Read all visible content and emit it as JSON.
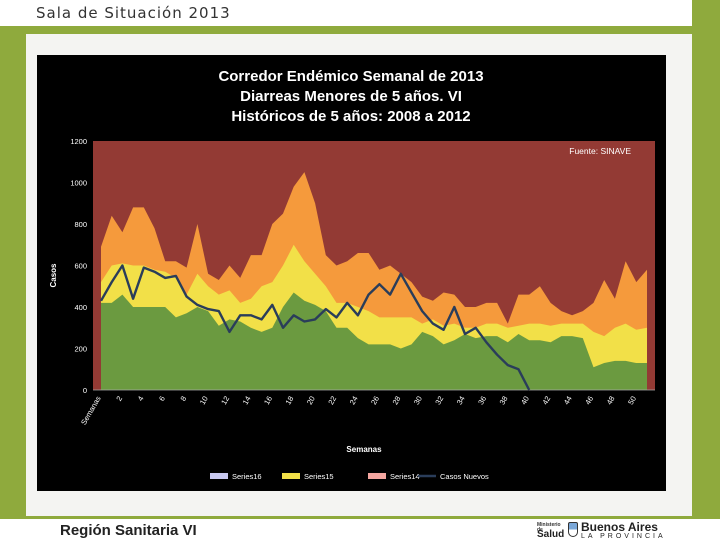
{
  "header": {
    "title": "Sala de Situación 2013"
  },
  "footer": {
    "region": "Región Sanitaria VI",
    "logo_ministry_line": "Ministerio de",
    "logo_salud": "Salud",
    "logo_brand": "Buenos Aires",
    "logo_province": "LA PROVINCIA"
  },
  "colors": {
    "frame": "#8faa3d",
    "plot_background": "#933a34",
    "series14": "#f59a3c",
    "series15": "#f2e048",
    "series16": "#6b9a40",
    "casos_nuevos": "#2a3d5a"
  },
  "chart_data": {
    "type": "area",
    "title_lines": [
      "Corredor Endémico Semanal de 2013",
      "Diarreas  Menores de 5 años.  VI",
      "Históricos de 5 años: 2008 a 2012"
    ],
    "source": "Fuente: SINAVE",
    "xlabel": "Semanas",
    "ylabel": "Casos",
    "ylim": [
      0,
      1200
    ],
    "yticks": [
      0,
      200,
      400,
      600,
      800,
      1000,
      1200
    ],
    "xtick_labels": [
      "Semanas",
      "2",
      "4",
      "6",
      "8",
      "10",
      "12",
      "14",
      "16",
      "18",
      "20",
      "22",
      "24",
      "26",
      "28",
      "30",
      "32",
      "34",
      "36",
      "38",
      "40",
      "42",
      "44",
      "46",
      "48",
      "50"
    ],
    "weeks": [
      1,
      2,
      3,
      4,
      5,
      6,
      7,
      8,
      9,
      10,
      11,
      12,
      13,
      14,
      15,
      16,
      17,
      18,
      19,
      20,
      21,
      22,
      23,
      24,
      25,
      26,
      27,
      28,
      29,
      30,
      31,
      32,
      33,
      34,
      35,
      36,
      37,
      38,
      39,
      40,
      41,
      42,
      43,
      44,
      45,
      46,
      47,
      48,
      49,
      50,
      51,
      52
    ],
    "legend": [
      "Series16",
      "Series15",
      "Series14",
      "Casos Nuevos"
    ],
    "series": [
      {
        "name": "Series14",
        "kind": "area",
        "values": [
          690,
          840,
          760,
          880,
          880,
          780,
          620,
          620,
          590,
          800,
          560,
          530,
          600,
          540,
          650,
          650,
          800,
          850,
          980,
          1050,
          900,
          650,
          600,
          620,
          660,
          660,
          580,
          600,
          560,
          520,
          450,
          430,
          470,
          460,
          400,
          400,
          420,
          420,
          320,
          460,
          460,
          500,
          420,
          380,
          360,
          380,
          420,
          530,
          440,
          620,
          520,
          580
        ]
      },
      {
        "name": "Series15",
        "kind": "area",
        "values": [
          520,
          600,
          610,
          600,
          600,
          580,
          570,
          540,
          460,
          560,
          500,
          460,
          480,
          420,
          440,
          500,
          520,
          600,
          700,
          620,
          560,
          500,
          420,
          420,
          400,
          380,
          350,
          350,
          350,
          350,
          320,
          340,
          310,
          320,
          300,
          300,
          320,
          320,
          300,
          310,
          320,
          320,
          310,
          320,
          320,
          320,
          280,
          260,
          300,
          320,
          290,
          300
        ]
      },
      {
        "name": "Series16",
        "kind": "area",
        "values": [
          420,
          420,
          460,
          400,
          400,
          400,
          400,
          350,
          370,
          400,
          380,
          310,
          340,
          330,
          300,
          280,
          300,
          400,
          470,
          430,
          410,
          380,
          300,
          300,
          250,
          220,
          220,
          220,
          200,
          220,
          280,
          260,
          220,
          240,
          270,
          250,
          260,
          260,
          230,
          270,
          240,
          240,
          230,
          260,
          260,
          250,
          110,
          130,
          140,
          140,
          130,
          130
        ]
      },
      {
        "name": "Casos Nuevos",
        "kind": "line",
        "values": [
          430,
          520,
          600,
          440,
          590,
          570,
          540,
          550,
          450,
          410,
          390,
          380,
          280,
          360,
          360,
          340,
          410,
          300,
          360,
          330,
          340,
          390,
          350,
          420,
          360,
          460,
          510,
          460,
          560,
          470,
          380,
          320,
          290,
          400,
          270,
          300,
          230,
          170,
          120,
          100,
          0,
          null,
          null,
          null,
          null,
          null,
          null,
          null,
          null,
          null,
          null,
          null
        ]
      }
    ]
  }
}
